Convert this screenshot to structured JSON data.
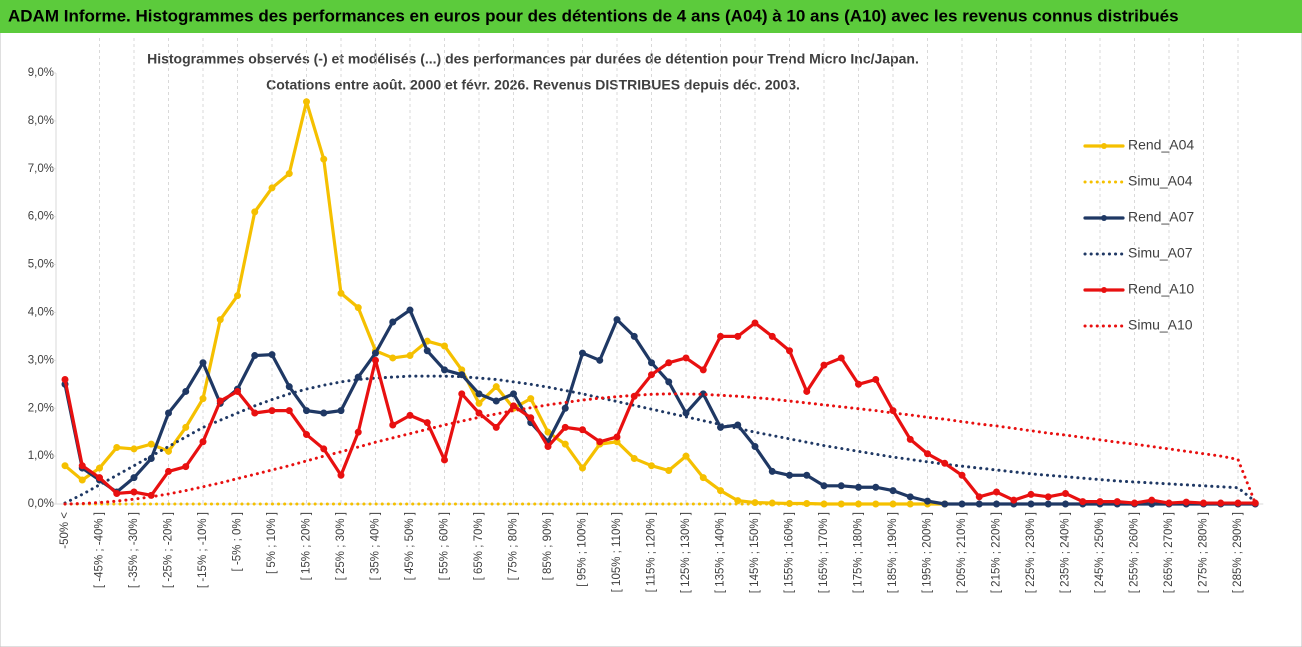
{
  "header": "ADAM Informe. Histogrammes des performances en euros pour des détentions de 4 ans (A04) à 10 ans (A10) avec les revenus connus distribués",
  "chart_data": {
    "type": "line",
    "title": "Histogrammes observés (-) et modélisés (...) des performances par durées de détention pour Trend Micro Inc/Japan.",
    "subtitle": "Cotations entre août. 2000 et févr. 2026. Revenus DISTRIBUES depuis déc. 2003.",
    "categories": [
      "-50% <",
      null,
      "[ -45% ; -40% ]",
      null,
      "[ -35% ; -30% ]",
      null,
      "[ -25% ; -20% ]",
      null,
      "[ -15% ; -10% ]",
      null,
      "[ -5% ; 0% ]",
      null,
      "[ 5% ; 10% ]",
      null,
      "[ 15% ; 20% ]",
      null,
      "[ 25% ; 30% ]",
      null,
      "[ 35% ; 40% ]",
      null,
      "[ 45% ; 50% ]",
      null,
      "[ 55% ; 60% ]",
      null,
      "[ 65% ; 70% ]",
      null,
      "[ 75% ; 80% ]",
      null,
      "[ 85% ; 90% ]",
      null,
      "[ 95% ; 100% ]",
      null,
      "[ 105% ; 110% ]",
      null,
      "[ 115% ; 120% ]",
      null,
      "[ 125% ; 130% ]",
      null,
      "[ 135% ; 140% ]",
      null,
      "[ 145% ; 150% ]",
      null,
      "[ 155% ; 160% ]",
      null,
      "[ 165% ; 170% ]",
      null,
      "[ 175% ; 180% ]",
      null,
      "[ 185% ; 190% ]",
      null,
      "[ 195% ; 200% ]",
      null,
      "[ 205% ; 210% ]",
      null,
      "[ 215% ; 220% ]",
      null,
      "[ 225% ; 230% ]",
      null,
      "[ 235% ; 240% ]",
      null,
      "[ 245% ; 250% ]",
      null,
      "[ 255% ; 260% ]",
      null,
      "[ 265% ; 270% ]",
      null,
      "[ 275% ; 280% ]",
      null,
      "[ 285% ; 290% ]",
      null
    ],
    "ylim": [
      0,
      9
    ],
    "yticks": [
      {
        "value": 0,
        "label": "0,0%"
      },
      {
        "value": 1,
        "label": "1,0%"
      },
      {
        "value": 2,
        "label": "2,0%"
      },
      {
        "value": 3,
        "label": "3,0%"
      },
      {
        "value": 4,
        "label": "4,0%"
      },
      {
        "value": 5,
        "label": "5,0%"
      },
      {
        "value": 6,
        "label": "6,0%"
      },
      {
        "value": 7,
        "label": "7,0%"
      },
      {
        "value": 8,
        "label": "8,0%"
      },
      {
        "value": 9,
        "label": "9,0%"
      }
    ],
    "grid": "vertical",
    "legend": "right",
    "series": [
      {
        "name": "Rend_A04",
        "color": "#f5c000",
        "style": "solid",
        "markers": true,
        "values": [
          0.8,
          0.5,
          0.75,
          1.18,
          1.15,
          1.25,
          1.1,
          1.6,
          2.2,
          3.85,
          4.35,
          6.1,
          6.6,
          6.9,
          8.4,
          7.2,
          4.4,
          4.1,
          3.2,
          3.05,
          3.1,
          3.4,
          3.3,
          2.8,
          2.1,
          2.45,
          2.0,
          2.2,
          1.5,
          1.25,
          0.75,
          1.25,
          1.3,
          0.95,
          0.8,
          0.7,
          1.0,
          0.55,
          0.28,
          0.07,
          0.03,
          0.02,
          0.01,
          0.01,
          0,
          0,
          0,
          0,
          0,
          0,
          0,
          0,
          null,
          null,
          null,
          null,
          null,
          null,
          null,
          null,
          null,
          null,
          null,
          null,
          null,
          null,
          null,
          null,
          null,
          null
        ]
      },
      {
        "name": "Simu_A04",
        "color": "#f5c000",
        "style": "dotted",
        "markers": false,
        "values": [
          0,
          0,
          0,
          0,
          0,
          0,
          0,
          0,
          0,
          0,
          0,
          0,
          0,
          0,
          0,
          0,
          0,
          0,
          0,
          0,
          0,
          0,
          0,
          0,
          0,
          0,
          0,
          0,
          0,
          0,
          0,
          0,
          0,
          0,
          0,
          0,
          0,
          0,
          0,
          0,
          0,
          0,
          0,
          0,
          0,
          0,
          0,
          0,
          0,
          0,
          0,
          0,
          null,
          null,
          null,
          null,
          null,
          null,
          null,
          null,
          null,
          null,
          null,
          null,
          null,
          null,
          null,
          null,
          null,
          null
        ]
      },
      {
        "name": "Rend_A07",
        "color": "#1f3864",
        "style": "solid",
        "markers": true,
        "values": [
          2.5,
          0.75,
          0.5,
          0.25,
          0.55,
          0.95,
          1.9,
          2.35,
          2.95,
          2.1,
          2.4,
          3.1,
          3.12,
          2.45,
          1.95,
          1.9,
          1.95,
          2.65,
          3.15,
          3.8,
          4.05,
          3.2,
          2.8,
          2.7,
          2.3,
          2.15,
          2.3,
          1.7,
          1.3,
          2.0,
          3.15,
          3.0,
          3.85,
          3.5,
          2.95,
          2.55,
          1.9,
          2.3,
          1.6,
          1.65,
          1.2,
          0.68,
          0.6,
          0.6,
          0.38,
          0.38,
          0.35,
          0.35,
          0.28,
          0.15,
          0.06,
          0,
          0,
          0,
          0,
          0,
          0,
          0,
          0,
          0,
          0,
          0,
          0,
          0,
          0,
          0,
          0,
          0,
          0,
          0
        ]
      },
      {
        "name": "Simu_A07",
        "color": "#1f3864",
        "style": "dotted",
        "markers": false,
        "values": [
          0.02,
          0.2,
          0.4,
          0.6,
          0.8,
          1.0,
          1.2,
          1.4,
          1.6,
          1.75,
          1.9,
          2.05,
          2.18,
          2.3,
          2.4,
          2.48,
          2.55,
          2.6,
          2.63,
          2.65,
          2.67,
          2.67,
          2.67,
          2.66,
          2.63,
          2.6,
          2.55,
          2.5,
          2.44,
          2.37,
          2.3,
          2.22,
          2.14,
          2.06,
          1.98,
          1.9,
          1.82,
          1.74,
          1.66,
          1.58,
          1.5,
          1.43,
          1.36,
          1.29,
          1.22,
          1.16,
          1.1,
          1.04,
          0.98,
          0.93,
          0.88,
          0.83,
          0.79,
          0.75,
          0.71,
          0.67,
          0.63,
          0.6,
          0.57,
          0.54,
          0.51,
          0.48,
          0.46,
          0.44,
          0.42,
          0.4,
          0.38,
          0.36,
          0.34,
          0.05
        ]
      },
      {
        "name": "Rend_A10",
        "color": "#e81010",
        "style": "solid",
        "markers": true,
        "values": [
          2.6,
          0.8,
          0.55,
          0.22,
          0.25,
          0.18,
          0.68,
          0.78,
          1.3,
          2.15,
          2.35,
          1.9,
          1.95,
          1.95,
          1.45,
          1.15,
          0.6,
          1.5,
          3.0,
          1.65,
          1.85,
          1.7,
          0.92,
          2.3,
          1.9,
          1.6,
          2.05,
          1.8,
          1.2,
          1.6,
          1.55,
          1.3,
          1.4,
          2.25,
          2.7,
          2.95,
          3.05,
          2.8,
          3.5,
          3.5,
          3.78,
          3.5,
          3.2,
          2.35,
          2.9,
          3.05,
          2.5,
          2.6,
          1.95,
          1.35,
          1.05,
          0.85,
          0.6,
          0.15,
          0.25,
          0.08,
          0.2,
          0.15,
          0.22,
          0.05,
          0.05,
          0.05,
          0.02,
          0.08,
          0.02,
          0.04,
          0.02,
          0.02,
          0.02,
          0.02
        ]
      },
      {
        "name": "Simu_A10",
        "color": "#e81010",
        "style": "dotted",
        "markers": false,
        "values": [
          0,
          0.01,
          0.03,
          0.06,
          0.1,
          0.15,
          0.21,
          0.28,
          0.36,
          0.44,
          0.53,
          0.62,
          0.71,
          0.8,
          0.9,
          1.0,
          1.09,
          1.19,
          1.29,
          1.38,
          1.47,
          1.56,
          1.65,
          1.73,
          1.81,
          1.88,
          1.95,
          2.01,
          2.07,
          2.12,
          2.17,
          2.21,
          2.24,
          2.27,
          2.29,
          2.3,
          2.3,
          2.29,
          2.27,
          2.25,
          2.22,
          2.19,
          2.15,
          2.11,
          2.07,
          2.03,
          1.99,
          1.95,
          1.9,
          1.86,
          1.81,
          1.77,
          1.72,
          1.67,
          1.63,
          1.58,
          1.53,
          1.48,
          1.44,
          1.39,
          1.34,
          1.29,
          1.25,
          1.2,
          1.15,
          1.1,
          1.05,
          1.0,
          0.93,
          0.02
        ]
      }
    ]
  }
}
